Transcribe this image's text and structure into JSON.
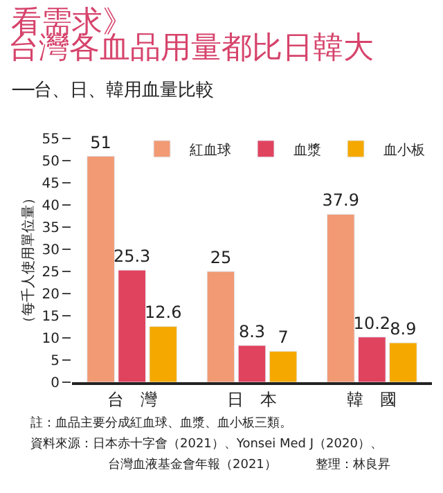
{
  "chart_data": {
    "type": "bar",
    "title": "台灣各血品用量都比日韓大",
    "subtitle": "──台、日、韓用血量比較",
    "ylabel": "（每千人使用單位量）",
    "categories": [
      "台　灣",
      "日　本",
      "韓　國"
    ],
    "series": [
      {
        "name": "紅血球",
        "color": "#f19a74",
        "values": [
          51,
          25,
          37.9
        ]
      },
      {
        "name": "血漿",
        "color": "#e0435e",
        "values": [
          25.3,
          8.3,
          10.2
        ]
      },
      {
        "name": "血小板",
        "color": "#f5a800",
        "values": [
          12.6,
          7,
          8.9
        ]
      }
    ],
    "ylim": [
      0,
      55
    ],
    "yticks": [
      0,
      5,
      10,
      15,
      20,
      25,
      30,
      35,
      40,
      45,
      50,
      55
    ],
    "legend": "top right",
    "data_labels": true,
    "annotations": [
      "看需求》",
      "註：血品主要分成紅血球、血漿、血小板三類。",
      "資料來源：日本赤十字會（2021）、Yonsei Med J（2020）、",
      "台灣血液基金會年報（2021）",
      "整理：林良昇"
    ]
  }
}
